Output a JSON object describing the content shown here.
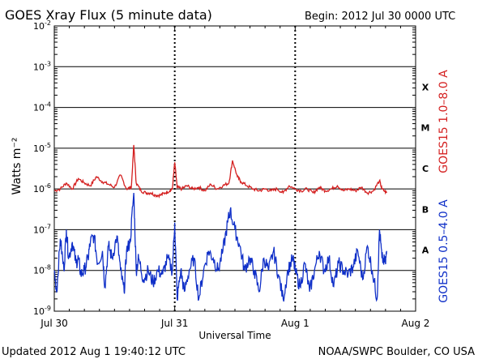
{
  "chart_data": {
    "type": "line",
    "title": "GOES Xray Flux (5 minute data)",
    "begin_label": "Begin:  2012 Jul 30 0000 UTC",
    "ylabel": "Watts m⁻²",
    "xlabel": "Universal Time",
    "x_ticks": [
      "Jul 30",
      "Jul 31",
      "Aug 1",
      "Aug 2"
    ],
    "x_unit": "days since 2012 Jul 30 0000 UTC",
    "xlim": [
      0,
      3
    ],
    "ylim": [
      1e-09,
      0.01
    ],
    "y_scale": "log",
    "y_ticks": [
      {
        "base": "10",
        "exp": "-9",
        "value": 1e-09
      },
      {
        "base": "10",
        "exp": "-8",
        "value": 1e-08
      },
      {
        "base": "10",
        "exp": "-7",
        "value": 1e-07
      },
      {
        "base": "10",
        "exp": "-6",
        "value": 1e-06
      },
      {
        "base": "10",
        "exp": "-5",
        "value": 1e-05
      },
      {
        "base": "10",
        "exp": "-4",
        "value": 0.0001
      },
      {
        "base": "10",
        "exp": "-3",
        "value": 0.001
      },
      {
        "base": "10",
        "exp": "-2",
        "value": 0.01
      }
    ],
    "flare_classes": [
      {
        "label": "A",
        "value": 3.16e-08
      },
      {
        "label": "B",
        "value": 3.16e-07
      },
      {
        "label": "C",
        "value": 3.16e-06
      },
      {
        "label": "M",
        "value": 3.16e-05
      },
      {
        "label": "X",
        "value": 0.000316
      }
    ],
    "grid": true,
    "series": [
      {
        "name": "GOES15 1.0–8.0 A",
        "color": "#d42020",
        "points": [
          [
            0.0,
            9e-07
          ],
          [
            0.05,
            1e-06
          ],
          [
            0.1,
            1.4e-06
          ],
          [
            0.15,
            1e-06
          ],
          [
            0.2,
            1.8e-06
          ],
          [
            0.25,
            1.4e-06
          ],
          [
            0.3,
            1.2e-06
          ],
          [
            0.35,
            2e-06
          ],
          [
            0.4,
            1.5e-06
          ],
          [
            0.45,
            1.3e-06
          ],
          [
            0.5,
            1.1e-06
          ],
          [
            0.55,
            2.2e-06
          ],
          [
            0.6,
            1e-06
          ],
          [
            0.64,
            1.1e-06
          ],
          [
            0.66,
            1.2e-05
          ],
          [
            0.68,
            1.4e-06
          ],
          [
            0.72,
            9e-07
          ],
          [
            0.76,
            8e-07
          ],
          [
            0.8,
            8e-07
          ],
          [
            0.84,
            7e-07
          ],
          [
            0.88,
            7e-07
          ],
          [
            0.92,
            8e-07
          ],
          [
            0.96,
            9e-07
          ],
          [
            0.98,
            1e-06
          ],
          [
            1.0,
            4.5e-06
          ],
          [
            1.02,
            1.1e-06
          ],
          [
            1.06,
            1e-06
          ],
          [
            1.1,
            1.2e-06
          ],
          [
            1.15,
            1e-06
          ],
          [
            1.2,
            1.1e-06
          ],
          [
            1.25,
            9e-07
          ],
          [
            1.3,
            1.3e-06
          ],
          [
            1.35,
            1e-06
          ],
          [
            1.4,
            1.2e-06
          ],
          [
            1.45,
            1.4e-06
          ],
          [
            1.48,
            5e-06
          ],
          [
            1.52,
            2e-06
          ],
          [
            1.55,
            1.5e-06
          ],
          [
            1.6,
            1.2e-06
          ],
          [
            1.65,
            1e-06
          ],
          [
            1.7,
            9e-07
          ],
          [
            1.75,
            1e-06
          ],
          [
            1.8,
            9e-07
          ],
          [
            1.85,
            1e-06
          ],
          [
            1.9,
            8e-07
          ],
          [
            1.95,
            1.2e-06
          ],
          [
            2.0,
            1e-06
          ],
          [
            2.05,
            9e-07
          ],
          [
            2.1,
            1e-06
          ],
          [
            2.15,
            8e-07
          ],
          [
            2.2,
            1.1e-06
          ],
          [
            2.25,
            9e-07
          ],
          [
            2.3,
            1e-06
          ],
          [
            2.35,
            1.2e-06
          ],
          [
            2.4,
            9e-07
          ],
          [
            2.45,
            1e-06
          ],
          [
            2.5,
            9e-07
          ],
          [
            2.55,
            1.1e-06
          ],
          [
            2.6,
            8e-07
          ],
          [
            2.65,
            9e-07
          ],
          [
            2.7,
            1.6e-06
          ],
          [
            2.72,
            1e-06
          ],
          [
            2.76,
            8e-07
          ]
        ]
      },
      {
        "name": "GOES15 0.5–4.0 A",
        "color": "#1030c8",
        "points": [
          [
            0.0,
            1e-08
          ],
          [
            0.02,
            3e-09
          ],
          [
            0.05,
            6e-08
          ],
          [
            0.08,
            1e-08
          ],
          [
            0.1,
            1e-07
          ],
          [
            0.12,
            2e-08
          ],
          [
            0.15,
            5e-08
          ],
          [
            0.18,
            1.5e-08
          ],
          [
            0.2,
            2e-08
          ],
          [
            0.22,
            8e-09
          ],
          [
            0.25,
            1e-08
          ],
          [
            0.28,
            2e-08
          ],
          [
            0.3,
            5e-08
          ],
          [
            0.33,
            7e-08
          ],
          [
            0.36,
            1.5e-08
          ],
          [
            0.4,
            3e-08
          ],
          [
            0.42,
            4e-09
          ],
          [
            0.45,
            4e-08
          ],
          [
            0.48,
            2e-08
          ],
          [
            0.52,
            7e-08
          ],
          [
            0.55,
            1e-08
          ],
          [
            0.58,
            3e-09
          ],
          [
            0.6,
            3e-08
          ],
          [
            0.63,
            5e-08
          ],
          [
            0.66,
            8e-07
          ],
          [
            0.68,
            1e-08
          ],
          [
            0.7,
            2e-08
          ],
          [
            0.74,
            6e-09
          ],
          [
            0.78,
            1e-08
          ],
          [
            0.82,
            5e-09
          ],
          [
            0.86,
            1e-08
          ],
          [
            0.9,
            8e-09
          ],
          [
            0.94,
            2e-08
          ],
          [
            0.98,
            1e-08
          ],
          [
            1.0,
            1.5e-07
          ],
          [
            1.02,
            2e-09
          ],
          [
            1.05,
            1e-08
          ],
          [
            1.08,
            3e-09
          ],
          [
            1.12,
            1e-08
          ],
          [
            1.16,
            2e-08
          ],
          [
            1.2,
            2e-09
          ],
          [
            1.24,
            1e-08
          ],
          [
            1.28,
            3e-08
          ],
          [
            1.32,
            2e-08
          ],
          [
            1.36,
            1e-08
          ],
          [
            1.4,
            3e-08
          ],
          [
            1.44,
            1.5e-07
          ],
          [
            1.46,
            3e-07
          ],
          [
            1.5,
            1e-07
          ],
          [
            1.54,
            4e-08
          ],
          [
            1.58,
            1e-08
          ],
          [
            1.62,
            2e-08
          ],
          [
            1.66,
            1e-08
          ],
          [
            1.7,
            3e-09
          ],
          [
            1.74,
            2e-08
          ],
          [
            1.78,
            1e-08
          ],
          [
            1.82,
            3e-08
          ],
          [
            1.86,
            8e-09
          ],
          [
            1.9,
            2e-09
          ],
          [
            1.94,
            1e-08
          ],
          [
            1.98,
            2e-08
          ],
          [
            2.0,
            1e-08
          ],
          [
            2.04,
            4e-09
          ],
          [
            2.08,
            1.5e-08
          ],
          [
            2.12,
            3e-09
          ],
          [
            2.16,
            1e-08
          ],
          [
            2.2,
            3e-08
          ],
          [
            2.24,
            1e-08
          ],
          [
            2.28,
            2e-08
          ],
          [
            2.32,
            4e-09
          ],
          [
            2.36,
            1.5e-08
          ],
          [
            2.4,
            1e-08
          ],
          [
            2.44,
            8e-09
          ],
          [
            2.48,
            1.2e-08
          ],
          [
            2.52,
            3e-08
          ],
          [
            2.56,
            6e-09
          ],
          [
            2.6,
            4e-08
          ],
          [
            2.64,
            1e-08
          ],
          [
            2.68,
            2e-09
          ],
          [
            2.7,
            1e-07
          ],
          [
            2.72,
            2e-08
          ],
          [
            2.75,
            1.5e-08
          ],
          [
            2.76,
            3e-08
          ]
        ]
      }
    ]
  },
  "footer": {
    "updated": "Updated 2012 Aug  1 19:40:12 UTC",
    "credit": "NOAA/SWPC Boulder, CO USA"
  }
}
